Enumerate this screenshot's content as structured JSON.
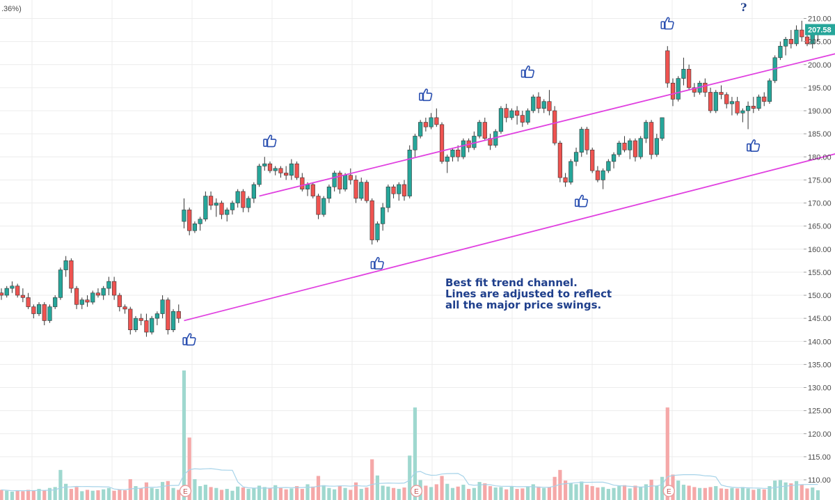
{
  "header": {
    "change_pct": ".36%)"
  },
  "annotation": {
    "lines": [
      "Best fit trend channel.",
      "Lines are adjusted to reflect",
      "all the major price swings."
    ],
    "question_mark": "?"
  },
  "colors": {
    "up": "#26a69a",
    "down": "#ef5350",
    "channel": "#e040e0",
    "grid": "#ececec",
    "volume_up": "#9fd8cf",
    "volume_down": "#f5a8a8",
    "volume_ma": "#a6d3e9",
    "price_tag": "#26a69a",
    "thumb": "#2a4fb0"
  },
  "chart_data": {
    "type": "candlestick",
    "ylim": [
      106,
      212
    ],
    "y_ticks": [
      110,
      115,
      120,
      125,
      130,
      135,
      140,
      145,
      150,
      155,
      160,
      165,
      170,
      175,
      180,
      185,
      190,
      195,
      200,
      205,
      210
    ],
    "y_tick_labels": [
      "110.00",
      "115.00",
      "120.00",
      "125.00",
      "130.00",
      "135.00",
      "140.00",
      "145.00",
      "150.00",
      "155.00",
      "160.00",
      "165.00",
      "170.00",
      "175.00",
      "180.00",
      "185.00",
      "190.00",
      "195.00",
      "200.00",
      "205.00",
      "210.00"
    ],
    "last_price": 207.58,
    "last_price_label": "207.58",
    "grid": true,
    "channel_lines": [
      {
        "name": "upper",
        "from": [
          48,
          171.5
        ],
        "to": [
          194,
          213.5
        ]
      },
      {
        "name": "lower",
        "from": [
          34,
          144.5
        ],
        "to": [
          194,
          192.2
        ]
      }
    ],
    "candles": [
      [
        150.5,
        151.5,
        149.0,
        150.0
      ],
      [
        150.0,
        152.0,
        149.5,
        151.5
      ],
      [
        151.5,
        153.0,
        150.5,
        152.0
      ],
      [
        152.0,
        152.5,
        149.5,
        150.0
      ],
      [
        150.0,
        151.5,
        148.5,
        149.5
      ],
      [
        149.5,
        150.5,
        147.0,
        147.5
      ],
      [
        147.5,
        148.0,
        145.0,
        146.0
      ],
      [
        146.0,
        148.5,
        145.5,
        148.0
      ],
      [
        148.0,
        148.5,
        143.5,
        144.5
      ],
      [
        144.5,
        148.0,
        144.0,
        147.5
      ],
      [
        147.5,
        150.0,
        147.0,
        149.5
      ],
      [
        149.5,
        156.0,
        149.0,
        155.5
      ],
      [
        155.5,
        158.5,
        154.0,
        157.5
      ],
      [
        157.5,
        158.0,
        150.5,
        151.5
      ],
      [
        151.5,
        152.0,
        147.0,
        148.0
      ],
      [
        148.0,
        149.5,
        147.0,
        149.0
      ],
      [
        149.0,
        150.0,
        147.5,
        148.5
      ],
      [
        148.5,
        151.0,
        148.0,
        150.5
      ],
      [
        150.5,
        151.5,
        149.5,
        150.0
      ],
      [
        150.0,
        152.0,
        149.0,
        151.5
      ],
      [
        151.5,
        154.0,
        150.0,
        153.0
      ],
      [
        153.0,
        154.0,
        149.0,
        150.0
      ],
      [
        150.0,
        150.5,
        146.5,
        147.5
      ],
      [
        147.5,
        148.0,
        146.0,
        147.0
      ],
      [
        147.0,
        147.5,
        141.5,
        142.5
      ],
      [
        142.5,
        145.5,
        142.0,
        145.0
      ],
      [
        145.0,
        146.0,
        143.5,
        144.5
      ],
      [
        144.5,
        146.0,
        141.0,
        142.0
      ],
      [
        142.0,
        145.5,
        141.5,
        145.0
      ],
      [
        145.0,
        146.5,
        143.5,
        146.0
      ],
      [
        146.0,
        150.0,
        145.0,
        149.0
      ],
      [
        149.0,
        149.5,
        141.5,
        142.5
      ],
      [
        142.5,
        147.0,
        142.0,
        146.5
      ],
      [
        146.5,
        148.0,
        144.0,
        145.0
      ],
      [
        166.0,
        171.0,
        164.5,
        168.5
      ],
      [
        168.5,
        169.0,
        163.0,
        164.0
      ],
      [
        164.0,
        166.0,
        163.5,
        165.5
      ],
      [
        165.5,
        167.0,
        164.0,
        166.5
      ],
      [
        166.5,
        172.5,
        166.0,
        171.5
      ],
      [
        171.5,
        172.5,
        168.5,
        169.5
      ],
      [
        169.5,
        171.0,
        167.0,
        170.0
      ],
      [
        170.0,
        170.5,
        166.5,
        167.5
      ],
      [
        167.5,
        169.0,
        166.0,
        168.5
      ],
      [
        168.5,
        170.5,
        167.5,
        170.0
      ],
      [
        170.0,
        173.0,
        169.0,
        172.5
      ],
      [
        172.5,
        173.0,
        168.0,
        169.0
      ],
      [
        169.0,
        171.5,
        168.0,
        171.0
      ],
      [
        171.0,
        174.5,
        170.0,
        174.0
      ],
      [
        174.0,
        178.5,
        173.5,
        178.0
      ],
      [
        178.0,
        180.0,
        177.0,
        178.5
      ],
      [
        178.5,
        179.0,
        176.5,
        177.0
      ],
      [
        177.0,
        178.0,
        176.0,
        177.5
      ],
      [
        177.5,
        178.0,
        175.5,
        176.5
      ],
      [
        176.5,
        178.0,
        175.0,
        176.0
      ],
      [
        176.0,
        179.5,
        175.0,
        178.5
      ],
      [
        178.5,
        179.0,
        175.0,
        175.5
      ],
      [
        175.5,
        176.5,
        172.5,
        173.0
      ],
      [
        173.0,
        174.5,
        171.5,
        174.0
      ],
      [
        174.0,
        174.5,
        171.0,
        171.5
      ],
      [
        171.5,
        172.0,
        166.5,
        167.5
      ],
      [
        167.5,
        171.5,
        167.0,
        171.0
      ],
      [
        171.0,
        174.0,
        170.0,
        173.5
      ],
      [
        173.5,
        177.0,
        172.5,
        176.5
      ],
      [
        176.5,
        177.0,
        172.0,
        173.0
      ],
      [
        173.0,
        176.5,
        172.5,
        176.0
      ],
      [
        176.0,
        177.5,
        174.0,
        175.0
      ],
      [
        175.0,
        176.0,
        170.0,
        171.0
      ],
      [
        171.0,
        175.5,
        170.5,
        174.5
      ],
      [
        174.5,
        175.0,
        170.0,
        170.5
      ],
      [
        170.5,
        171.0,
        161.0,
        162.0
      ],
      [
        162.0,
        166.0,
        161.5,
        165.5
      ],
      [
        165.5,
        170.0,
        164.0,
        169.0
      ],
      [
        169.0,
        174.0,
        168.0,
        173.5
      ],
      [
        173.5,
        174.0,
        171.0,
        172.0
      ],
      [
        172.0,
        174.5,
        170.5,
        174.0
      ],
      [
        174.0,
        175.0,
        170.5,
        171.5
      ],
      [
        171.5,
        182.5,
        171.0,
        181.5
      ],
      [
        181.5,
        185.0,
        180.0,
        184.5
      ],
      [
        184.5,
        188.0,
        184.0,
        187.5
      ],
      [
        187.5,
        188.5,
        185.5,
        186.5
      ],
      [
        186.5,
        189.5,
        186.0,
        188.5
      ],
      [
        188.5,
        190.5,
        186.5,
        187.0
      ],
      [
        187.0,
        187.5,
        178.5,
        179.0
      ],
      [
        179.0,
        180.5,
        176.5,
        180.0
      ],
      [
        180.0,
        182.0,
        179.0,
        181.5
      ],
      [
        181.5,
        182.5,
        179.0,
        180.0
      ],
      [
        180.0,
        184.0,
        179.5,
        183.5
      ],
      [
        183.5,
        184.0,
        181.0,
        182.0
      ],
      [
        182.0,
        185.5,
        181.5,
        184.5
      ],
      [
        184.5,
        188.0,
        184.0,
        187.5
      ],
      [
        187.5,
        188.5,
        183.5,
        184.0
      ],
      [
        184.0,
        185.0,
        181.5,
        182.5
      ],
      [
        182.5,
        186.0,
        182.0,
        185.5
      ],
      [
        185.5,
        191.0,
        185.0,
        190.5
      ],
      [
        190.5,
        191.5,
        187.5,
        188.5
      ],
      [
        188.5,
        190.5,
        188.0,
        190.0
      ],
      [
        190.0,
        191.0,
        187.0,
        189.0
      ],
      [
        189.0,
        190.0,
        186.5,
        187.5
      ],
      [
        187.5,
        190.5,
        187.0,
        190.0
      ],
      [
        190.0,
        193.5,
        189.5,
        193.0
      ],
      [
        193.0,
        194.0,
        189.5,
        190.5
      ],
      [
        190.5,
        192.5,
        189.5,
        192.0
      ],
      [
        192.0,
        194.5,
        189.0,
        190.0
      ],
      [
        190.0,
        191.0,
        182.5,
        183.0
      ],
      [
        183.0,
        183.5,
        174.5,
        175.5
      ],
      [
        175.5,
        176.5,
        173.5,
        174.5
      ],
      [
        174.5,
        179.5,
        174.0,
        179.0
      ],
      [
        179.0,
        182.0,
        178.0,
        181.0
      ],
      [
        181.0,
        186.5,
        180.0,
        186.0
      ],
      [
        186.0,
        186.5,
        180.5,
        181.5
      ],
      [
        181.5,
        182.0,
        176.5,
        177.0
      ],
      [
        177.0,
        178.0,
        174.5,
        175.0
      ],
      [
        175.0,
        177.5,
        173.0,
        177.0
      ],
      [
        177.0,
        179.5,
        176.5,
        179.0
      ],
      [
        179.0,
        181.0,
        177.5,
        180.5
      ],
      [
        180.5,
        183.5,
        180.0,
        183.0
      ],
      [
        183.0,
        184.5,
        181.0,
        181.5
      ],
      [
        181.5,
        184.0,
        179.5,
        183.5
      ],
      [
        183.5,
        184.0,
        179.0,
        180.0
      ],
      [
        180.0,
        184.5,
        179.5,
        184.0
      ],
      [
        184.0,
        188.0,
        183.0,
        187.5
      ],
      [
        187.5,
        188.0,
        179.5,
        180.5
      ],
      [
        180.5,
        185.0,
        180.0,
        184.0
      ],
      [
        184.0,
        188.5,
        183.5,
        188.5
      ],
      [
        203.0,
        204.0,
        195.0,
        196.0
      ],
      [
        196.0,
        197.0,
        191.0,
        192.5
      ],
      [
        192.5,
        197.5,
        192.0,
        197.0
      ],
      [
        197.0,
        201.5,
        195.5,
        199.0
      ],
      [
        199.0,
        200.0,
        194.5,
        195.0
      ],
      [
        195.0,
        196.0,
        193.0,
        194.0
      ],
      [
        194.0,
        196.5,
        193.5,
        196.0
      ],
      [
        196.0,
        197.0,
        193.0,
        194.0
      ],
      [
        194.0,
        195.0,
        189.5,
        190.0
      ],
      [
        190.0,
        194.5,
        189.5,
        194.0
      ],
      [
        194.0,
        195.5,
        192.5,
        193.5
      ],
      [
        193.5,
        194.0,
        190.5,
        191.5
      ],
      [
        191.5,
        193.0,
        189.0,
        192.0
      ],
      [
        192.0,
        193.0,
        189.0,
        189.5
      ],
      [
        189.5,
        190.5,
        187.5,
        190.0
      ],
      [
        190.0,
        192.0,
        186.0,
        191.0
      ],
      [
        191.0,
        193.0,
        189.5,
        190.5
      ],
      [
        190.5,
        193.5,
        190.0,
        193.0
      ],
      [
        193.0,
        194.0,
        191.0,
        192.0
      ],
      [
        192.0,
        197.0,
        191.5,
        196.5
      ],
      [
        196.5,
        202.0,
        196.0,
        201.5
      ],
      [
        201.5,
        205.0,
        201.0,
        204.0
      ],
      [
        204.0,
        206.0,
        202.0,
        205.5
      ],
      [
        205.5,
        207.5,
        203.5,
        204.5
      ],
      [
        204.5,
        208.5,
        204.0,
        207.5
      ],
      [
        207.5,
        209.5,
        205.0,
        206.0
      ],
      [
        206.0,
        208.0,
        204.0,
        204.5
      ],
      [
        204.5,
        207.0,
        203.5,
        206.5
      ],
      [
        206.5,
        208.0,
        205.0,
        207.5
      ]
    ],
    "volume_scale": [
      0,
      28
    ],
    "volumes": [
      2.2,
      2.0,
      1.8,
      2.1,
      1.9,
      2.2,
      2.0,
      2.4,
      2.1,
      2.6,
      2.8,
      6.5,
      3.5,
      2.4,
      2.8,
      1.9,
      2.2,
      2.0,
      2.1,
      2.3,
      2.6,
      2.0,
      2.3,
      2.1,
      4.5,
      3.0,
      2.5,
      3.8,
      2.6,
      2.4,
      3.9,
      4.1,
      2.6,
      2.2,
      28.0,
      13.5,
      4.5,
      3.0,
      3.3,
      2.8,
      2.6,
      2.2,
      2.4,
      2.0,
      2.9,
      2.7,
      2.4,
      2.6,
      3.1,
      2.8,
      2.5,
      3.2,
      2.6,
      2.3,
      2.5,
      3.0,
      2.4,
      3.4,
      2.9,
      5.2,
      3.2,
      2.6,
      2.3,
      3.0,
      2.6,
      2.2,
      3.8,
      2.4,
      2.7,
      8.8,
      5.3,
      3.1,
      2.9,
      2.6,
      2.4,
      2.7,
      9.6,
      20.0,
      4.3,
      3.1,
      2.8,
      3.4,
      5.2,
      3.5,
      2.6,
      2.9,
      3.3,
      2.4,
      2.6,
      3.9,
      3.6,
      3.0,
      2.7,
      2.8,
      2.3,
      3.0,
      2.4,
      2.5,
      2.9,
      3.4,
      2.9,
      2.6,
      2.8,
      5.0,
      6.5,
      4.2,
      3.6,
      3.4,
      4.0,
      3.3,
      3.0,
      2.7,
      2.8,
      2.4,
      2.6,
      3.0,
      3.2,
      2.5,
      3.1,
      2.8,
      3.4,
      4.4,
      3.1,
      5.0,
      20.0,
      5.5,
      4.2,
      3.3,
      3.1,
      2.8,
      2.6,
      2.6,
      2.8,
      3.0,
      2.5,
      2.4,
      2.6,
      2.5,
      2.8,
      2.5,
      2.2,
      2.4,
      2.3,
      3.0,
      4.2,
      4.3,
      3.8,
      3.6,
      4.1,
      3.3,
      2.5,
      2.7,
      2.1
    ],
    "earnings_markers": [
      {
        "index": 34,
        "label": "E"
      },
      {
        "index": 77,
        "label": "E"
      },
      {
        "index": 124,
        "label": "E"
      }
    ],
    "thumbs_up_at": [
      {
        "index": 35,
        "price": 140.5,
        "position": "below"
      },
      {
        "index": 50,
        "price": 183.5,
        "position": "above"
      },
      {
        "index": 70,
        "price": 157.0,
        "position": "below"
      },
      {
        "index": 79,
        "price": 193.5,
        "position": "above"
      },
      {
        "index": 98,
        "price": 198.5,
        "position": "above"
      },
      {
        "index": 108,
        "price": 170.5,
        "position": "below"
      },
      {
        "index": 124,
        "price": 209.0,
        "position": "above"
      },
      {
        "index": 140,
        "price": 182.5,
        "position": "below"
      }
    ]
  }
}
